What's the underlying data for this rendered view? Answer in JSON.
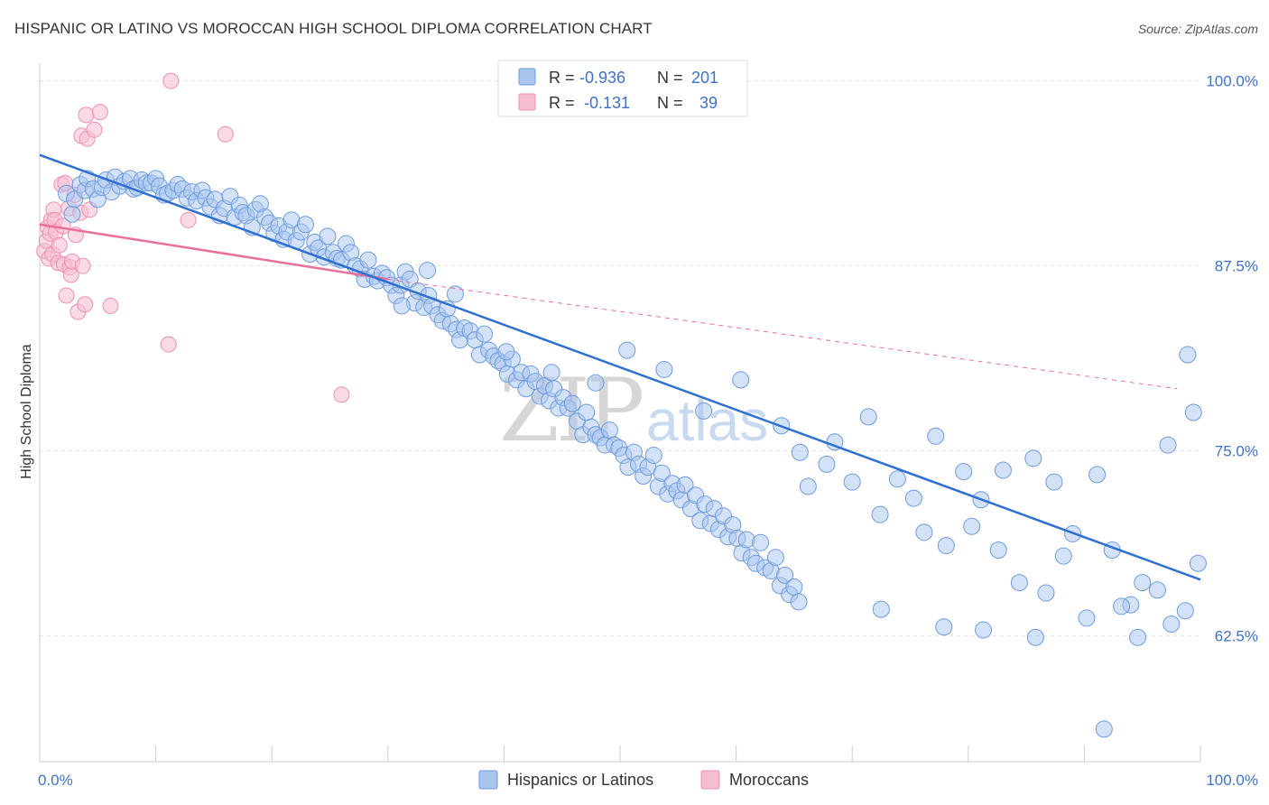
{
  "title": "HISPANIC OR LATINO VS MOROCCAN HIGH SCHOOL DIPLOMA CORRELATION CHART",
  "source": "Source: ZipAtlas.com",
  "watermark": {
    "zip": "ZIP",
    "atlas": "atlas"
  },
  "colors": {
    "blue_fill": "#a9c6ef",
    "blue_stroke": "#6d9be0",
    "blue_line": "#2f6fd0",
    "pink_fill": "#f6bdd0",
    "pink_stroke": "#ee90b0",
    "pink_line": "#e8709a",
    "axis_text": "#3f72c6",
    "grid": "#e3e3e3"
  },
  "legend": {
    "rows": [
      {
        "r_label": "R =",
        "r_value": "-0.936",
        "n_label": "N =",
        "n_value": "201"
      },
      {
        "r_label": "R =",
        "r_value": " -0.131",
        "n_label": "N =",
        "n_value": "39"
      }
    ]
  },
  "bottom_legend": [
    "Hispanics or Latinos",
    "Moroccans"
  ],
  "chart_data": {
    "type": "scatter",
    "title": "HISPANIC OR LATINO VS MOROCCAN HIGH SCHOOL DIPLOMA CORRELATION CHART",
    "xlabel": "",
    "ylabel": "High School Diploma",
    "x_tick_labels": [
      "0.0%",
      "100.0%"
    ],
    "y_tick_labels": [
      "100.0%",
      "87.5%",
      "75.0%",
      "62.5%"
    ],
    "y_ticks": [
      100,
      87.5,
      75,
      62.5
    ],
    "xlim": [
      0,
      100
    ],
    "ylim": [
      54,
      101.2
    ],
    "grid": true,
    "legend_position": "top-center",
    "series": [
      {
        "name": "Hispanics or Latinos",
        "r": -0.936,
        "n": 201,
        "trend": {
          "x": [
            0,
            100
          ],
          "y": [
            95.0,
            66.3
          ]
        },
        "points": [
          [
            2.3,
            92.4
          ],
          [
            2.8,
            91.0
          ],
          [
            3.0,
            92.0
          ],
          [
            3.5,
            93.0
          ],
          [
            3.9,
            92.6
          ],
          [
            4.1,
            93.4
          ],
          [
            4.6,
            92.7
          ],
          [
            5.0,
            92.0
          ],
          [
            5.4,
            92.8
          ],
          [
            5.7,
            93.3
          ],
          [
            6.2,
            92.5
          ],
          [
            6.5,
            93.5
          ],
          [
            6.9,
            92.9
          ],
          [
            7.3,
            93.2
          ],
          [
            7.8,
            93.4
          ],
          [
            8.1,
            92.7
          ],
          [
            8.4,
            92.8
          ],
          [
            8.8,
            93.3
          ],
          [
            9.2,
            93.1
          ],
          [
            9.6,
            93.1
          ],
          [
            10.0,
            93.4
          ],
          [
            10.3,
            92.9
          ],
          [
            10.7,
            92.3
          ],
          [
            11.0,
            92.4
          ],
          [
            11.5,
            92.6
          ],
          [
            11.9,
            93.0
          ],
          [
            12.3,
            92.7
          ],
          [
            12.7,
            92.1
          ],
          [
            13.1,
            92.5
          ],
          [
            13.5,
            91.9
          ],
          [
            14.0,
            92.6
          ],
          [
            14.3,
            92.1
          ],
          [
            14.7,
            91.5
          ],
          [
            15.1,
            92.0
          ],
          [
            15.5,
            90.9
          ],
          [
            15.9,
            91.4
          ],
          [
            16.4,
            92.2
          ],
          [
            16.8,
            90.8
          ],
          [
            17.2,
            91.6
          ],
          [
            17.5,
            91.1
          ],
          [
            17.8,
            90.9
          ],
          [
            18.3,
            90.1
          ],
          [
            18.6,
            91.3
          ],
          [
            19.0,
            91.7
          ],
          [
            19.4,
            90.8
          ],
          [
            19.8,
            90.4
          ],
          [
            20.2,
            89.7
          ],
          [
            20.6,
            90.2
          ],
          [
            21.0,
            89.3
          ],
          [
            21.3,
            89.8
          ],
          [
            21.7,
            90.6
          ],
          [
            22.1,
            89.2
          ],
          [
            22.5,
            89.8
          ],
          [
            22.9,
            90.3
          ],
          [
            23.3,
            88.3
          ],
          [
            23.7,
            89.1
          ],
          [
            24.0,
            88.7
          ],
          [
            24.5,
            88.1
          ],
          [
            24.8,
            89.5
          ],
          [
            25.3,
            88.4
          ],
          [
            25.6,
            88.0
          ],
          [
            26.0,
            87.9
          ],
          [
            26.4,
            89.0
          ],
          [
            26.8,
            88.4
          ],
          [
            27.2,
            87.5
          ],
          [
            27.6,
            87.3
          ],
          [
            28.0,
            86.6
          ],
          [
            28.3,
            87.9
          ],
          [
            28.8,
            86.8
          ],
          [
            29.1,
            86.5
          ],
          [
            29.5,
            87.0
          ],
          [
            29.9,
            86.7
          ],
          [
            30.3,
            86.2
          ],
          [
            30.7,
            85.5
          ],
          [
            31.1,
            86.2
          ],
          [
            31.5,
            87.1
          ],
          [
            31.9,
            86.6
          ],
          [
            32.3,
            85.0
          ],
          [
            32.6,
            85.8
          ],
          [
            33.1,
            84.7
          ],
          [
            33.5,
            85.5
          ],
          [
            33.8,
            84.8
          ],
          [
            34.3,
            84.2
          ],
          [
            34.7,
            83.8
          ],
          [
            35.1,
            84.6
          ],
          [
            35.4,
            83.6
          ],
          [
            35.9,
            83.2
          ],
          [
            36.2,
            82.5
          ],
          [
            36.6,
            83.3
          ],
          [
            37.1,
            83.1
          ],
          [
            37.5,
            82.5
          ],
          [
            37.9,
            81.5
          ],
          [
            38.3,
            82.9
          ],
          [
            38.7,
            81.8
          ],
          [
            39.1,
            81.4
          ],
          [
            39.5,
            81.1
          ],
          [
            39.9,
            80.9
          ],
          [
            40.3,
            80.2
          ],
          [
            40.7,
            81.2
          ],
          [
            41.1,
            79.8
          ],
          [
            41.5,
            80.3
          ],
          [
            41.9,
            79.2
          ],
          [
            42.3,
            80.2
          ],
          [
            42.7,
            79.7
          ],
          [
            43.1,
            78.7
          ],
          [
            43.5,
            79.4
          ],
          [
            43.9,
            78.4
          ],
          [
            44.3,
            79.2
          ],
          [
            44.7,
            77.9
          ],
          [
            45.1,
            78.6
          ],
          [
            45.5,
            77.9
          ],
          [
            45.9,
            78.2
          ],
          [
            46.3,
            77.0
          ],
          [
            46.8,
            76.1
          ],
          [
            47.1,
            77.6
          ],
          [
            47.5,
            76.6
          ],
          [
            47.9,
            76.1
          ],
          [
            48.3,
            75.9
          ],
          [
            48.7,
            75.4
          ],
          [
            49.1,
            76.4
          ],
          [
            49.5,
            75.4
          ],
          [
            49.9,
            75.2
          ],
          [
            50.3,
            74.7
          ],
          [
            50.7,
            73.9
          ],
          [
            51.2,
            74.9
          ],
          [
            51.6,
            74.1
          ],
          [
            52.0,
            73.3
          ],
          [
            52.4,
            73.9
          ],
          [
            52.9,
            74.7
          ],
          [
            53.3,
            72.6
          ],
          [
            53.6,
            73.5
          ],
          [
            54.1,
            72.1
          ],
          [
            54.5,
            72.8
          ],
          [
            54.9,
            72.3
          ],
          [
            55.3,
            71.7
          ],
          [
            55.6,
            72.7
          ],
          [
            56.1,
            71.1
          ],
          [
            56.5,
            72.0
          ],
          [
            56.9,
            70.3
          ],
          [
            57.3,
            71.4
          ],
          [
            57.8,
            70.1
          ],
          [
            58.1,
            71.1
          ],
          [
            58.5,
            69.7
          ],
          [
            58.9,
            70.6
          ],
          [
            59.3,
            69.2
          ],
          [
            59.7,
            70.0
          ],
          [
            60.1,
            69.1
          ],
          [
            60.5,
            68.1
          ],
          [
            60.9,
            69.0
          ],
          [
            61.3,
            67.8
          ],
          [
            61.7,
            67.4
          ],
          [
            62.1,
            68.8
          ],
          [
            62.5,
            67.1
          ],
          [
            63.0,
            66.9
          ],
          [
            63.4,
            67.8
          ],
          [
            63.8,
            65.9
          ],
          [
            64.2,
            66.6
          ],
          [
            64.6,
            65.3
          ],
          [
            65.0,
            65.8
          ],
          [
            65.4,
            64.8
          ],
          [
            31.2,
            84.8
          ],
          [
            33.4,
            87.2
          ],
          [
            35.8,
            85.6
          ],
          [
            40.2,
            81.7
          ],
          [
            44.1,
            80.3
          ],
          [
            47.9,
            79.6
          ],
          [
            50.6,
            81.8
          ],
          [
            53.8,
            80.5
          ],
          [
            57.2,
            77.7
          ],
          [
            60.4,
            79.8
          ],
          [
            63.9,
            76.7
          ],
          [
            65.5,
            74.9
          ],
          [
            67.8,
            74.1
          ],
          [
            70.0,
            72.9
          ],
          [
            72.4,
            70.7
          ],
          [
            75.3,
            71.8
          ],
          [
            77.2,
            76.0
          ],
          [
            79.6,
            73.6
          ],
          [
            81.1,
            71.7
          ],
          [
            82.6,
            68.3
          ],
          [
            84.4,
            66.1
          ],
          [
            86.7,
            65.4
          ],
          [
            88.2,
            67.9
          ],
          [
            90.2,
            63.7
          ],
          [
            92.4,
            68.3
          ],
          [
            94.0,
            64.6
          ],
          [
            96.3,
            65.6
          ],
          [
            97.5,
            63.3
          ],
          [
            98.7,
            64.2
          ],
          [
            99.8,
            67.4
          ],
          [
            66.2,
            72.6
          ],
          [
            68.5,
            75.6
          ],
          [
            71.4,
            77.3
          ],
          [
            73.9,
            73.1
          ],
          [
            76.2,
            69.5
          ],
          [
            78.1,
            68.6
          ],
          [
            80.3,
            69.9
          ],
          [
            83.0,
            73.7
          ],
          [
            85.6,
            74.5
          ],
          [
            87.4,
            72.9
          ],
          [
            89.0,
            69.4
          ],
          [
            91.1,
            73.4
          ],
          [
            93.2,
            64.5
          ],
          [
            95.0,
            66.1
          ],
          [
            97.2,
            75.4
          ],
          [
            98.9,
            81.5
          ],
          [
            99.4,
            77.6
          ],
          [
            72.5,
            64.3
          ],
          [
            77.9,
            63.1
          ],
          [
            81.3,
            62.9
          ],
          [
            85.8,
            62.4
          ],
          [
            91.7,
            56.2
          ],
          [
            94.6,
            62.4
          ]
        ]
      },
      {
        "name": "Moroccans",
        "r": -0.131,
        "n": 39,
        "trend": {
          "x": [
            0,
            30
          ],
          "y": [
            90.3,
            86.6
          ]
        },
        "trend_extension": {
          "x": [
            30,
            98
          ],
          "y": [
            86.6,
            79.2
          ]
        },
        "points": [
          [
            0.4,
            88.5
          ],
          [
            0.6,
            89.2
          ],
          [
            0.7,
            90.1
          ],
          [
            0.8,
            88.0
          ],
          [
            0.9,
            89.7
          ],
          [
            1.0,
            90.6
          ],
          [
            1.1,
            88.3
          ],
          [
            1.2,
            91.3
          ],
          [
            1.3,
            90.6
          ],
          [
            1.4,
            89.8
          ],
          [
            1.6,
            87.7
          ],
          [
            1.7,
            88.9
          ],
          [
            1.9,
            93.0
          ],
          [
            2.0,
            90.2
          ],
          [
            2.1,
            87.6
          ],
          [
            2.2,
            93.1
          ],
          [
            2.3,
            85.5
          ],
          [
            2.5,
            91.4
          ],
          [
            2.6,
            87.4
          ],
          [
            2.7,
            86.9
          ],
          [
            2.8,
            87.8
          ],
          [
            3.0,
            92.3
          ],
          [
            3.1,
            89.6
          ],
          [
            3.3,
            84.4
          ],
          [
            3.5,
            91.1
          ],
          [
            3.7,
            87.5
          ],
          [
            3.9,
            84.9
          ],
          [
            3.6,
            96.3
          ],
          [
            4.1,
            96.1
          ],
          [
            4.3,
            91.3
          ],
          [
            4.0,
            97.7
          ],
          [
            4.7,
            96.7
          ],
          [
            5.2,
            97.9
          ],
          [
            6.1,
            84.8
          ],
          [
            11.1,
            82.2
          ],
          [
            11.3,
            100.0
          ],
          [
            12.8,
            90.6
          ],
          [
            16.0,
            96.4
          ],
          [
            26.0,
            78.8
          ]
        ]
      }
    ]
  }
}
